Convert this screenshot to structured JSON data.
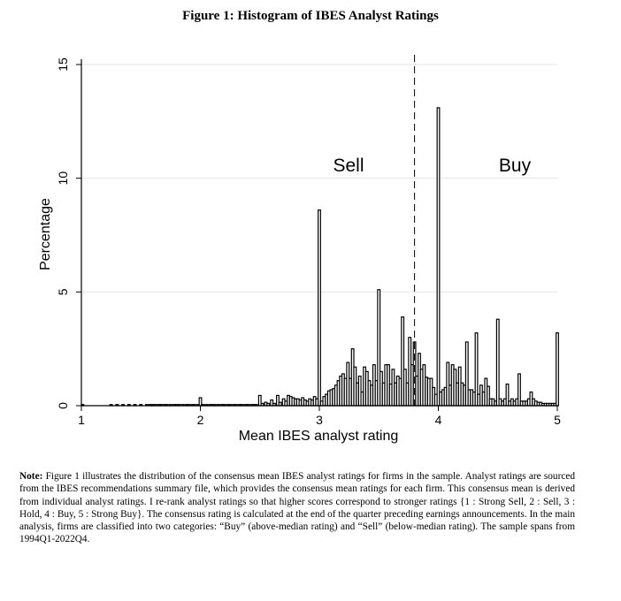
{
  "chart_data": {
    "type": "bar",
    "title": "Figure 1: Histogram of IBES Analyst Ratings",
    "xlabel": "Mean IBES analyst rating",
    "ylabel": "Percentage",
    "xlim": [
      1,
      5
    ],
    "ylim": [
      0,
      15
    ],
    "x_ticks": [
      "1",
      "2",
      "3",
      "4",
      "5"
    ],
    "y_ticks": [
      "0",
      "5",
      "10",
      "15"
    ],
    "grid": true,
    "cutoff_line_x": 3.8,
    "annotations": [
      "Sell",
      "Buy"
    ],
    "bar_width": 0.02,
    "series": [
      {
        "name": "Percentage",
        "x": [
          1.01,
          1.25,
          1.3,
          1.35,
          1.4,
          1.45,
          1.5,
          1.55,
          1.58,
          1.6,
          1.62,
          1.65,
          1.67,
          1.7,
          1.72,
          1.75,
          1.78,
          1.8,
          1.82,
          1.85,
          1.88,
          1.9,
          1.93,
          1.95,
          1.98,
          2.0,
          2.02,
          2.05,
          2.08,
          2.1,
          2.12,
          2.15,
          2.18,
          2.2,
          2.23,
          2.25,
          2.28,
          2.3,
          2.33,
          2.35,
          2.38,
          2.4,
          2.43,
          2.45,
          2.47,
          2.5,
          2.52,
          2.55,
          2.57,
          2.6,
          2.62,
          2.65,
          2.67,
          2.7,
          2.72,
          2.74,
          2.76,
          2.78,
          2.8,
          2.82,
          2.84,
          2.86,
          2.88,
          2.9,
          2.92,
          2.94,
          2.96,
          2.98,
          3.0,
          3.02,
          3.04,
          3.06,
          3.08,
          3.1,
          3.12,
          3.14,
          3.16,
          3.18,
          3.2,
          3.22,
          3.24,
          3.26,
          3.28,
          3.3,
          3.32,
          3.34,
          3.36,
          3.38,
          3.4,
          3.42,
          3.44,
          3.46,
          3.48,
          3.5,
          3.52,
          3.54,
          3.56,
          3.58,
          3.6,
          3.62,
          3.64,
          3.66,
          3.68,
          3.7,
          3.72,
          3.74,
          3.76,
          3.78,
          3.8,
          3.82,
          3.84,
          3.86,
          3.88,
          3.9,
          3.92,
          3.94,
          3.96,
          3.98,
          4.0,
          4.02,
          4.04,
          4.06,
          4.08,
          4.1,
          4.12,
          4.14,
          4.16,
          4.18,
          4.2,
          4.22,
          4.24,
          4.26,
          4.28,
          4.3,
          4.32,
          4.34,
          4.36,
          4.38,
          4.4,
          4.42,
          4.44,
          4.46,
          4.48,
          4.5,
          4.52,
          4.54,
          4.56,
          4.58,
          4.6,
          4.62,
          4.64,
          4.66,
          4.68,
          4.7,
          4.72,
          4.74,
          4.76,
          4.78,
          4.8,
          4.82,
          4.84,
          4.86,
          4.88,
          4.9,
          4.92,
          4.94,
          4.96,
          4.98,
          5.0
        ],
        "values": [
          0.05,
          0.05,
          0.05,
          0.05,
          0.05,
          0.05,
          0.05,
          0.05,
          0.05,
          0.05,
          0.05,
          0.05,
          0.05,
          0.05,
          0.05,
          0.05,
          0.05,
          0.05,
          0.05,
          0.05,
          0.05,
          0.05,
          0.05,
          0.05,
          0.05,
          0.35,
          0.05,
          0.05,
          0.05,
          0.05,
          0.05,
          0.05,
          0.05,
          0.05,
          0.05,
          0.05,
          0.05,
          0.05,
          0.05,
          0.05,
          0.05,
          0.05,
          0.05,
          0.05,
          0.05,
          0.45,
          0.1,
          0.15,
          0.1,
          0.25,
          0.1,
          0.45,
          0.15,
          0.3,
          0.2,
          0.45,
          0.4,
          0.35,
          0.3,
          0.3,
          0.25,
          0.35,
          0.25,
          0.2,
          0.3,
          0.25,
          0.4,
          0.3,
          8.6,
          0.2,
          0.4,
          0.5,
          0.65,
          0.7,
          0.75,
          0.9,
          1.1,
          1.3,
          1.4,
          1.2,
          1.9,
          1.2,
          2.5,
          1.7,
          1.0,
          1.3,
          0.6,
          1.7,
          1.5,
          1.1,
          0.9,
          1.8,
          1.1,
          5.1,
          1.5,
          1.0,
          1.8,
          1.8,
          0.95,
          1.6,
          1.0,
          1.3,
          1.2,
          3.9,
          1.6,
          1.0,
          3.0,
          1.8,
          2.8,
          1.3,
          2.3,
          1.6,
          1.8,
          1.25,
          1.2,
          1.2,
          0.8,
          0.5,
          13.1,
          0.6,
          0.7,
          0.8,
          1.9,
          0.9,
          1.8,
          1.6,
          1.0,
          1.7,
          1.0,
          0.9,
          2.8,
          0.7,
          0.7,
          0.6,
          3.2,
          0.5,
          0.9,
          0.6,
          1.2,
          0.85,
          0.3,
          0.3,
          0.2,
          3.8,
          0.3,
          0.2,
          0.3,
          0.95,
          0.2,
          0.3,
          0.2,
          0.3,
          1.4,
          0.2,
          0.2,
          0.2,
          0.3,
          0.6,
          0.3,
          0.2,
          0.15,
          0.15,
          0.1,
          0.1,
          0.1,
          0.1,
          0.1,
          0.1,
          3.2
        ]
      }
    ]
  },
  "note": {
    "label": "Note:",
    "text": "Figure 1 illustrates the distribution of the consensus mean IBES analyst ratings for firms in the sample. Analyst ratings are sourced from the IBES recommendations summary file, which provides the consensus mean ratings for each firm. This consensus mean is derived from individual analyst ratings. I re-rank analyst ratings so that higher scores correspond to stronger ratings {1 : Strong Sell, 2 : Sell, 3 : Hold, 4 : Buy, 5 : Strong Buy}. The consensus rating is calculated at the end of the quarter preceding earnings announcements. In the main analysis, firms are classified into two categories: “Buy” (above-median rating) and “Sell” (below-median rating). The sample spans from 1994Q1-2022Q4."
  }
}
